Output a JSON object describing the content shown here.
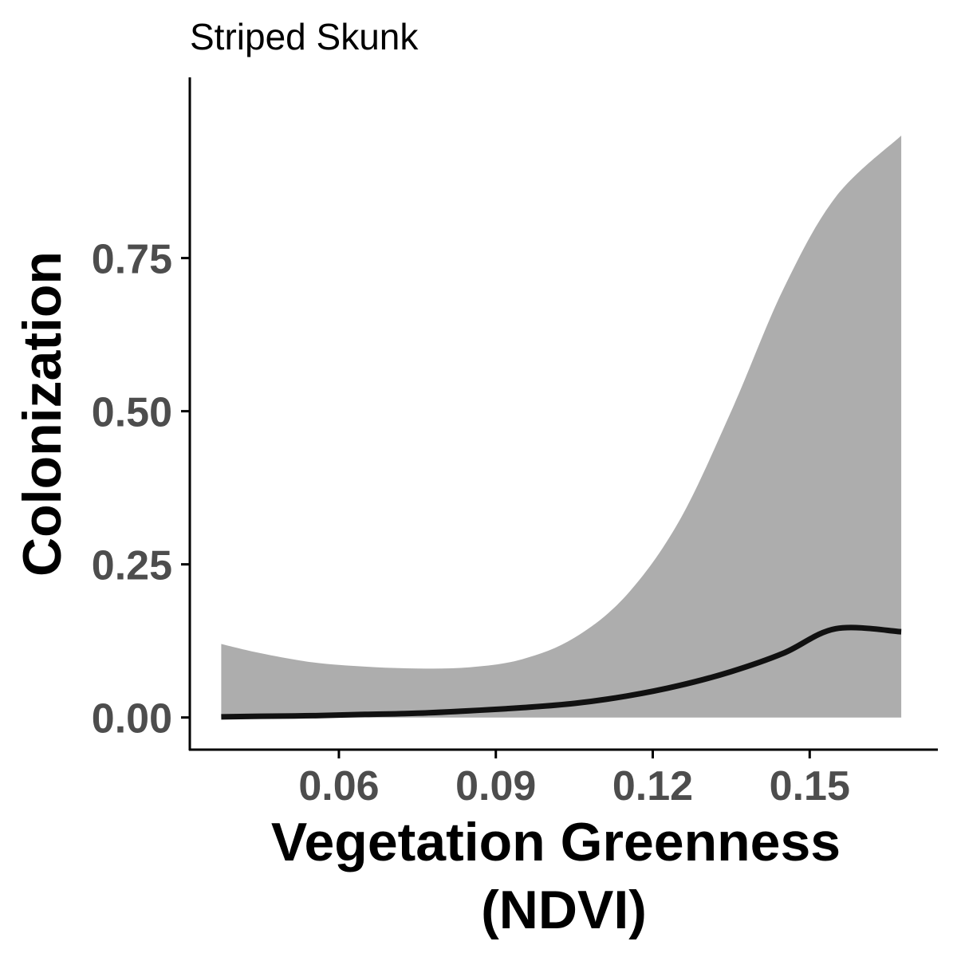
{
  "chart_data": {
    "type": "line",
    "title": "Striped Skunk",
    "xlabel_lines": [
      "Vegetation Greenness",
      "(NDVI)"
    ],
    "ylabel": "Colonization",
    "xlim": [
      0.0315,
      0.1745
    ],
    "ylim": [
      -0.0525,
      1.045
    ],
    "x_ticks": [
      {
        "value": 0.06,
        "label": "0.06"
      },
      {
        "value": 0.09,
        "label": "0.09"
      },
      {
        "value": 0.12,
        "label": "0.12"
      },
      {
        "value": 0.15,
        "label": "0.15"
      }
    ],
    "y_ticks": [
      {
        "value": 0.0,
        "label": "0.00"
      },
      {
        "value": 0.25,
        "label": "0.25"
      },
      {
        "value": 0.5,
        "label": "0.50"
      },
      {
        "value": 0.75,
        "label": "0.75"
      }
    ],
    "grid": false,
    "legend": "none",
    "colors": {
      "line": "#111111",
      "ribbon": "#adadad",
      "axis": "#000000",
      "tick_label": "#4d4d4d"
    },
    "series": [
      {
        "x": [
          0.0375,
          0.045,
          0.055,
          0.065,
          0.075,
          0.085,
          0.095,
          0.105,
          0.115,
          0.125,
          0.135,
          0.145,
          0.155,
          0.1675
        ],
        "y": [
          0.001,
          0.002,
          0.003,
          0.005,
          0.007,
          0.011,
          0.016,
          0.023,
          0.035,
          0.052,
          0.075,
          0.105,
          0.145,
          0.14
        ],
        "lower": [
          0,
          0,
          0,
          0,
          0,
          0,
          0,
          0,
          0,
          0,
          0,
          0,
          0,
          0
        ],
        "upper": [
          0.12,
          0.105,
          0.09,
          0.083,
          0.08,
          0.082,
          0.095,
          0.13,
          0.2,
          0.32,
          0.5,
          0.7,
          0.85,
          0.95
        ]
      }
    ]
  }
}
